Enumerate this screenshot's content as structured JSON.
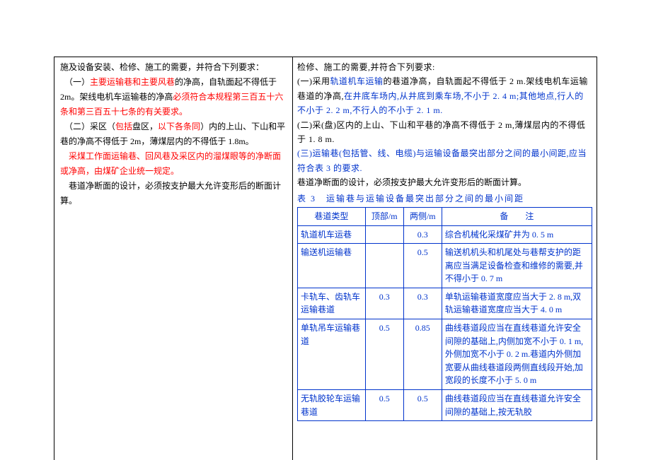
{
  "left": {
    "p1": "施及设备安装、检修、施工的需要，并符合下列要求：",
    "p2a": "　（一）",
    "p2b": "主要运输巷和主要风巷",
    "p2c": "的净高，自轨面起不得低于 2m。架线电机车运输巷的净高",
    "p2d": "必须符合本规程第三百五十六条和第三百五十七条的有关要求。",
    "p3a": "　（二）采区（",
    "p3b": "包括",
    "p3c": "盘区，",
    "p3d": "以下各条同",
    "p3e": "）内的上山、下山和平巷的净高不得低于 2m，薄煤层内的不得低于 1.8m。",
    "p4": "　采煤工作面运输巷、回风巷及采区内的溜煤眼等的净断面或净高，由煤矿企业统一规定。",
    "p5": "　巷道净断面的设计，必须按支护最大允许变形后的断面计算。"
  },
  "right": {
    "p1": "检修、施工的需要,并符合下列要求:",
    "p2a": "(一)采用",
    "p2b": "轨道机车运输",
    "p2c": "的巷道净高，自轨面起不得低于 2 m.架线电机车运输巷道的净高,",
    "p2d": "在井底车场内,从井底到乘车场,不小于 2. 4 m;其他地点,行人的不小于 2. 2 m,不行人的不小于 2. 1 m.",
    "p3": "(二)采(盘)区内的上山、下山和平巷的净高不得低于 2 m,薄煤层内的不得低于 1. 8 m.",
    "p4": "(三)运输巷(包括管、线、电缆)与运输设备最突出部分之间的最小间距,应当符合表 3 的要求.",
    "p5": "巷道净断面的设计，必须按支护最大允许变形后的断面计算。",
    "tcap": "表 3　运输巷与运输设备最突出部分之间的最小间距",
    "table": {
      "head": [
        "巷道类型",
        "顶部/m",
        "两侧/m",
        "备注"
      ],
      "rows": [
        {
          "a": "轨道机车运巷",
          "b": "",
          "c": "0.3",
          "d": "综合机械化采煤矿井为 0. 5 m"
        },
        {
          "a": "输送机运输巷",
          "b": "",
          "c": "0.5",
          "d": "输送机机头和机尾处与巷帮支护的距离应当满足设备检查和维修的需要,并不得小于 0. 7 m"
        },
        {
          "a": "卡轨车、齿轨车运输巷道",
          "b": "0.3",
          "c": "0.3",
          "d": "单轨运输巷道宽度应当大于 2. 8 m,双轨运输巷道宽度应当大于 4. 0 m"
        },
        {
          "a": "单轨吊车运输巷道",
          "b": "0.5",
          "c": "0.85",
          "d": "曲线巷道段应当在直线巷道允许安全间隙的基础上,内侧加宽不小于 0. 1 m,外侧加宽不小于 0. 2 m.巷道内外侧加宽要从曲线巷道段两侧直线段开始,加宽段的长度不小于 5. 0 m"
        },
        {
          "a": "无轨胶轮车运输巷道",
          "b": "0.5",
          "c": "0.5",
          "d": "曲线巷道段应当在直线巷道允许安全间隙的基础上,按无轨胶"
        }
      ]
    }
  }
}
